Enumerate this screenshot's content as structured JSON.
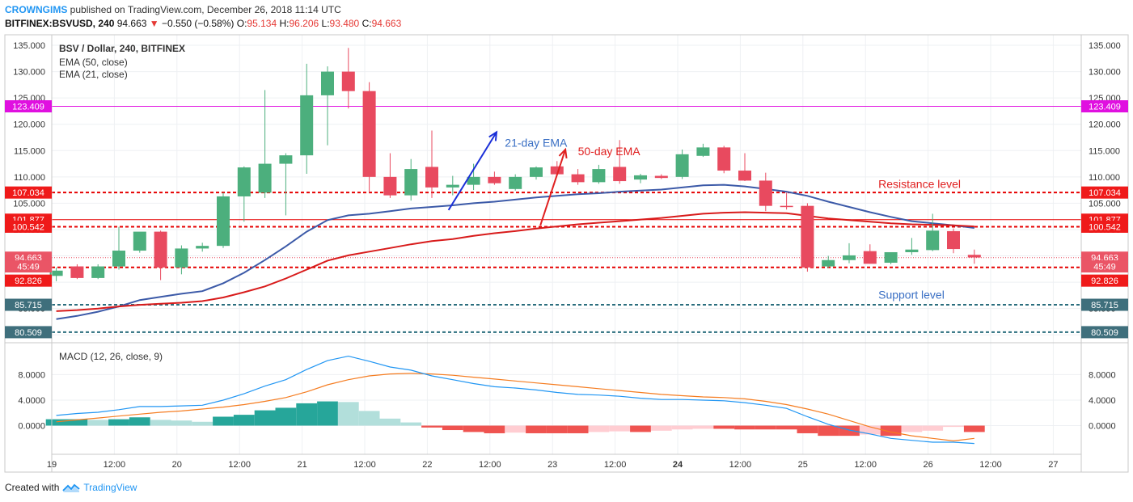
{
  "header": {
    "author": "CROWNGIMS",
    "published_text": "published on TradingView.com, December 26, 2018 11:14 UTC",
    "symbol": "BITFINEX:BSVUSD, 240",
    "last": "94.663",
    "change": "−0.550 (−0.58%)",
    "o_label": "O:",
    "o_value": "95.134",
    "h_label": "H:",
    "h_value": "96.206",
    "l_label": "L:",
    "l_value": "93.480",
    "c_label": "C:",
    "c_value": "94.663"
  },
  "footer": {
    "created_with": "Created with",
    "brand": "TradingView"
  },
  "colors": {
    "up": "#4caf7d",
    "down": "#e84a5f",
    "ema21": "#3c5aa8",
    "ema50": "#d81b1b",
    "magenta": "#e010e0",
    "support": "#2b6e7e",
    "macd": "#2196f3",
    "signal": "#f57c20",
    "hist_up_strong": "#26a69a",
    "hist_up_weak": "#b2dfdb",
    "hist_down_strong": "#ef5350",
    "hist_down_weak": "#ffcdd2"
  },
  "chart_data": {
    "type": "candlestick",
    "title": "BSV / Dollar, 240, BITFINEX",
    "legend": [
      "EMA (50, close)",
      "EMA (21, close)"
    ],
    "ylim": [
      78.5,
      137.0
    ],
    "y_ticks": [
      135,
      130,
      125,
      120,
      115,
      110,
      105,
      100,
      95,
      90,
      85,
      80
    ],
    "y_tick_labels": [
      "135.000",
      "130.000",
      "125.000",
      "120.000",
      "115.000",
      "110.000",
      "105.000",
      "100.000",
      "95.000",
      "90.000",
      "85.000",
      "80.000"
    ],
    "x_ticks": [
      "19",
      "12:00",
      "20",
      "12:00",
      "21",
      "12:00",
      "22",
      "12:00",
      "23",
      "12:00",
      "24",
      "12:00",
      "25",
      "12:00",
      "26",
      "12:00",
      "27"
    ],
    "bold_x_ticks": [
      "24"
    ],
    "candles": [
      {
        "o": 91.2,
        "h": 92.8,
        "l": 90.2,
        "c": 92.2
      },
      {
        "o": 93.0,
        "h": 93.4,
        "l": 90.6,
        "c": 90.8
      },
      {
        "o": 90.8,
        "h": 93.4,
        "l": 90.6,
        "c": 93.0
      },
      {
        "o": 93.0,
        "h": 100.5,
        "l": 92.4,
        "c": 96.0
      },
      {
        "o": 96.0,
        "h": 99.2,
        "l": 95.6,
        "c": 99.6
      },
      {
        "o": 99.6,
        "h": 99.8,
        "l": 90.4,
        "c": 92.8
      },
      {
        "o": 92.8,
        "h": 97.0,
        "l": 91.5,
        "c": 96.4
      },
      {
        "o": 96.4,
        "h": 97.5,
        "l": 95.8,
        "c": 96.9
      },
      {
        "o": 96.9,
        "h": 107.0,
        "l": 96.5,
        "c": 106.3
      },
      {
        "o": 106.3,
        "h": 112.0,
        "l": 101.5,
        "c": 111.8
      },
      {
        "o": 107.0,
        "h": 126.5,
        "l": 106.0,
        "c": 112.5
      },
      {
        "o": 112.5,
        "h": 114.5,
        "l": 102.7,
        "c": 114.1
      },
      {
        "o": 114.1,
        "h": 131.5,
        "l": 110.6,
        "c": 125.5
      },
      {
        "o": 125.5,
        "h": 131.0,
        "l": 116.0,
        "c": 130.0
      },
      {
        "o": 130.0,
        "h": 134.5,
        "l": 123.0,
        "c": 126.3
      },
      {
        "o": 126.3,
        "h": 128.0,
        "l": 107.0,
        "c": 110.0
      },
      {
        "o": 110.0,
        "h": 114.5,
        "l": 106.0,
        "c": 106.5
      },
      {
        "o": 106.5,
        "h": 113.4,
        "l": 105.5,
        "c": 111.5
      },
      {
        "o": 111.9,
        "h": 118.8,
        "l": 106.0,
        "c": 108.0
      },
      {
        "o": 108.0,
        "h": 110.2,
        "l": 106.5,
        "c": 108.5
      },
      {
        "o": 108.5,
        "h": 112.5,
        "l": 107.5,
        "c": 110.0
      },
      {
        "o": 110.0,
        "h": 111.0,
        "l": 108.5,
        "c": 108.8
      },
      {
        "o": 107.7,
        "h": 110.5,
        "l": 107.4,
        "c": 110.0
      },
      {
        "o": 110.0,
        "h": 112.0,
        "l": 109.5,
        "c": 111.8
      },
      {
        "o": 112.0,
        "h": 113.0,
        "l": 110.3,
        "c": 110.5
      },
      {
        "o": 110.5,
        "h": 111.5,
        "l": 108.5,
        "c": 109.0
      },
      {
        "o": 109.0,
        "h": 112.3,
        "l": 108.7,
        "c": 111.5
      },
      {
        "o": 111.9,
        "h": 117.0,
        "l": 108.7,
        "c": 109.2
      },
      {
        "o": 109.5,
        "h": 110.6,
        "l": 108.8,
        "c": 110.3
      },
      {
        "o": 110.2,
        "h": 110.5,
        "l": 109.6,
        "c": 109.8
      },
      {
        "o": 110.0,
        "h": 115.2,
        "l": 109.6,
        "c": 114.3
      },
      {
        "o": 114.0,
        "h": 116.3,
        "l": 113.8,
        "c": 115.6
      },
      {
        "o": 115.6,
        "h": 115.9,
        "l": 110.7,
        "c": 111.2
      },
      {
        "o": 111.2,
        "h": 114.5,
        "l": 109.2,
        "c": 109.3
      },
      {
        "o": 109.3,
        "h": 110.8,
        "l": 103.5,
        "c": 104.5
      },
      {
        "o": 104.5,
        "h": 107.0,
        "l": 103.8,
        "c": 104.3
      },
      {
        "o": 104.5,
        "h": 105.0,
        "l": 92.0,
        "c": 92.8
      },
      {
        "o": 93.0,
        "h": 95.0,
        "l": 92.7,
        "c": 94.2
      },
      {
        "o": 94.2,
        "h": 97.4,
        "l": 93.6,
        "c": 95.1
      },
      {
        "o": 95.9,
        "h": 97.2,
        "l": 93.5,
        "c": 93.5
      },
      {
        "o": 93.7,
        "h": 95.2,
        "l": 93.4,
        "c": 95.7
      },
      {
        "o": 95.7,
        "h": 98.4,
        "l": 95.2,
        "c": 96.2
      },
      {
        "o": 96.1,
        "h": 103.0,
        "l": 95.9,
        "c": 99.8
      },
      {
        "o": 99.7,
        "h": 100.2,
        "l": 95.5,
        "c": 96.3
      },
      {
        "o": 95.2,
        "h": 96.2,
        "l": 93.5,
        "c": 94.7
      }
    ],
    "ema21": [
      83.0,
      83.6,
      84.4,
      85.4,
      86.6,
      87.2,
      87.8,
      88.3,
      89.8,
      91.8,
      94.2,
      96.8,
      99.6,
      101.8,
      102.7,
      103.0,
      103.5,
      104.0,
      104.3,
      104.6,
      105.0,
      105.3,
      105.7,
      106.1,
      106.4,
      106.7,
      106.9,
      107.2,
      107.4,
      107.6,
      108.0,
      108.4,
      108.5,
      108.2,
      107.7,
      107.2,
      106.4,
      105.3,
      104.3,
      103.3,
      102.4,
      101.6,
      101.2,
      100.8,
      100.3
    ],
    "ema50": [
      84.5,
      84.7,
      85.0,
      85.4,
      85.7,
      85.9,
      86.1,
      86.4,
      87.1,
      88.1,
      89.2,
      90.7,
      92.4,
      94.1,
      95.1,
      95.8,
      96.5,
      97.2,
      97.8,
      98.2,
      98.8,
      99.3,
      99.7,
      100.2,
      100.6,
      101.0,
      101.3,
      101.6,
      101.9,
      102.2,
      102.6,
      103.0,
      103.2,
      103.3,
      103.2,
      103.1,
      102.6,
      102.1,
      101.8,
      101.5,
      101.2,
      101.0,
      100.9,
      100.8,
      100.6
    ],
    "levels": [
      {
        "label": "123.409",
        "value": 123.409,
        "style": "magenta"
      },
      {
        "label": "107.034",
        "value": 107.034,
        "style": "red-dash"
      },
      {
        "label": "101.877",
        "value": 101.877,
        "style": "red-solid"
      },
      {
        "label": "100.542",
        "value": 100.542,
        "style": "red-dash"
      },
      {
        "label": "94.663",
        "value": 94.663,
        "style": "last-dotted"
      },
      {
        "label": "92.826",
        "value": 92.826,
        "style": "red-dash"
      },
      {
        "label": "85.715",
        "value": 85.715,
        "style": "support-dash"
      },
      {
        "label": "80.509",
        "value": 80.509,
        "style": "support-dash"
      }
    ],
    "left_labels": [
      {
        "label": "123.409",
        "value": 123.409,
        "style": "magenta"
      },
      {
        "label": "107.034",
        "value": 107.034,
        "style": "red"
      },
      {
        "label": "101.877",
        "value": 101.877,
        "style": "red"
      },
      {
        "label": "100.542",
        "value": 100.542,
        "style": "red"
      },
      {
        "label": "94.663",
        "value": 94.663,
        "style": "pink"
      },
      {
        "label": "45:49",
        "value": 93.0,
        "style": "pink"
      },
      {
        "label": "92.826",
        "value": 90.3,
        "style": "red"
      },
      {
        "label": "85.715",
        "value": 85.715,
        "style": "support"
      },
      {
        "label": "80.509",
        "value": 80.509,
        "style": "support"
      }
    ],
    "right_labels": [
      {
        "label": "123.409",
        "value": 123.409,
        "style": "magenta"
      },
      {
        "label": "107.034",
        "value": 107.034,
        "style": "red"
      },
      {
        "label": "101.877",
        "value": 101.877,
        "style": "red"
      },
      {
        "label": "100.542",
        "value": 100.542,
        "style": "red"
      },
      {
        "label": "94.663",
        "value": 94.663,
        "style": "pink"
      },
      {
        "label": "45:49",
        "value": 93.0,
        "style": "pink"
      },
      {
        "label": "92.826",
        "value": 90.3,
        "style": "red"
      },
      {
        "label": "85.715",
        "value": 85.715,
        "style": "support"
      },
      {
        "label": "80.509",
        "value": 80.509,
        "style": "support"
      }
    ],
    "annotations": [
      {
        "text": "21-day EMA",
        "price": 115.7,
        "bar": 21.5,
        "color": "#3a6fc4"
      },
      {
        "text": "50-day EMA",
        "price": 114.1,
        "bar": 25.0,
        "color": "#e02020"
      },
      {
        "text": "Resistance level",
        "price": 107.9,
        "bar": 39.4,
        "color": "#e02020"
      },
      {
        "text": "Support level",
        "price": 86.9,
        "bar": 39.4,
        "color": "#3a6fc4"
      }
    ],
    "arrows": [
      {
        "color": "#1a2fd8",
        "from": [
          18.8,
          103.7
        ],
        "to": [
          21.1,
          118.5
        ]
      },
      {
        "color": "#e02020",
        "from": [
          23.2,
          100.8
        ],
        "to": [
          24.4,
          115.2
        ]
      }
    ],
    "macd": {
      "title": "MACD (12, 26, close, 9)",
      "ylim": [
        -4.5,
        13.0
      ],
      "y_ticks": [
        8,
        4,
        0
      ],
      "y_tick_labels": [
        "8.0000",
        "4.0000",
        "0.0000"
      ],
      "macd": [
        1.6,
        1.9,
        2.1,
        2.5,
        3.0,
        3.0,
        3.1,
        3.2,
        4.0,
        5.0,
        6.2,
        7.2,
        8.8,
        10.2,
        10.9,
        10.1,
        9.2,
        8.7,
        7.8,
        7.2,
        6.6,
        6.1,
        5.9,
        5.6,
        5.2,
        4.9,
        4.8,
        4.6,
        4.3,
        4.1,
        4.1,
        4.0,
        3.9,
        3.6,
        3.2,
        2.7,
        1.4,
        0.2,
        -0.7,
        -1.3,
        -2.0,
        -2.3,
        -2.6,
        -2.6,
        -2.8
      ],
      "signal": [
        0.6,
        0.9,
        1.2,
        1.5,
        1.8,
        2.1,
        2.3,
        2.6,
        2.9,
        3.3,
        3.8,
        4.4,
        5.3,
        6.4,
        7.2,
        7.8,
        8.1,
        8.2,
        8.1,
        7.9,
        7.6,
        7.3,
        7.0,
        6.7,
        6.4,
        6.1,
        5.8,
        5.5,
        5.2,
        4.9,
        4.7,
        4.5,
        4.4,
        4.2,
        3.8,
        3.3,
        2.6,
        1.8,
        0.8,
        -0.2,
        -1.0,
        -1.6,
        -2.0,
        -2.4,
        -2.0
      ],
      "histogram": [
        1.0,
        1.0,
        0.9,
        1.0,
        1.3,
        0.9,
        0.8,
        0.6,
        1.4,
        1.7,
        2.4,
        2.8,
        3.5,
        3.8,
        3.7,
        2.3,
        1.1,
        0.5,
        -0.3,
        -0.7,
        -1.0,
        -1.2,
        -1.1,
        -1.2,
        -1.2,
        -1.2,
        -1.0,
        -0.9,
        -1.0,
        -0.8,
        -0.6,
        -0.5,
        -0.5,
        -0.6,
        -0.6,
        -0.6,
        -1.2,
        -1.6,
        -1.6,
        -1.4,
        -1.6,
        -1.0,
        -0.8,
        -0.2,
        -1.0
      ]
    }
  }
}
